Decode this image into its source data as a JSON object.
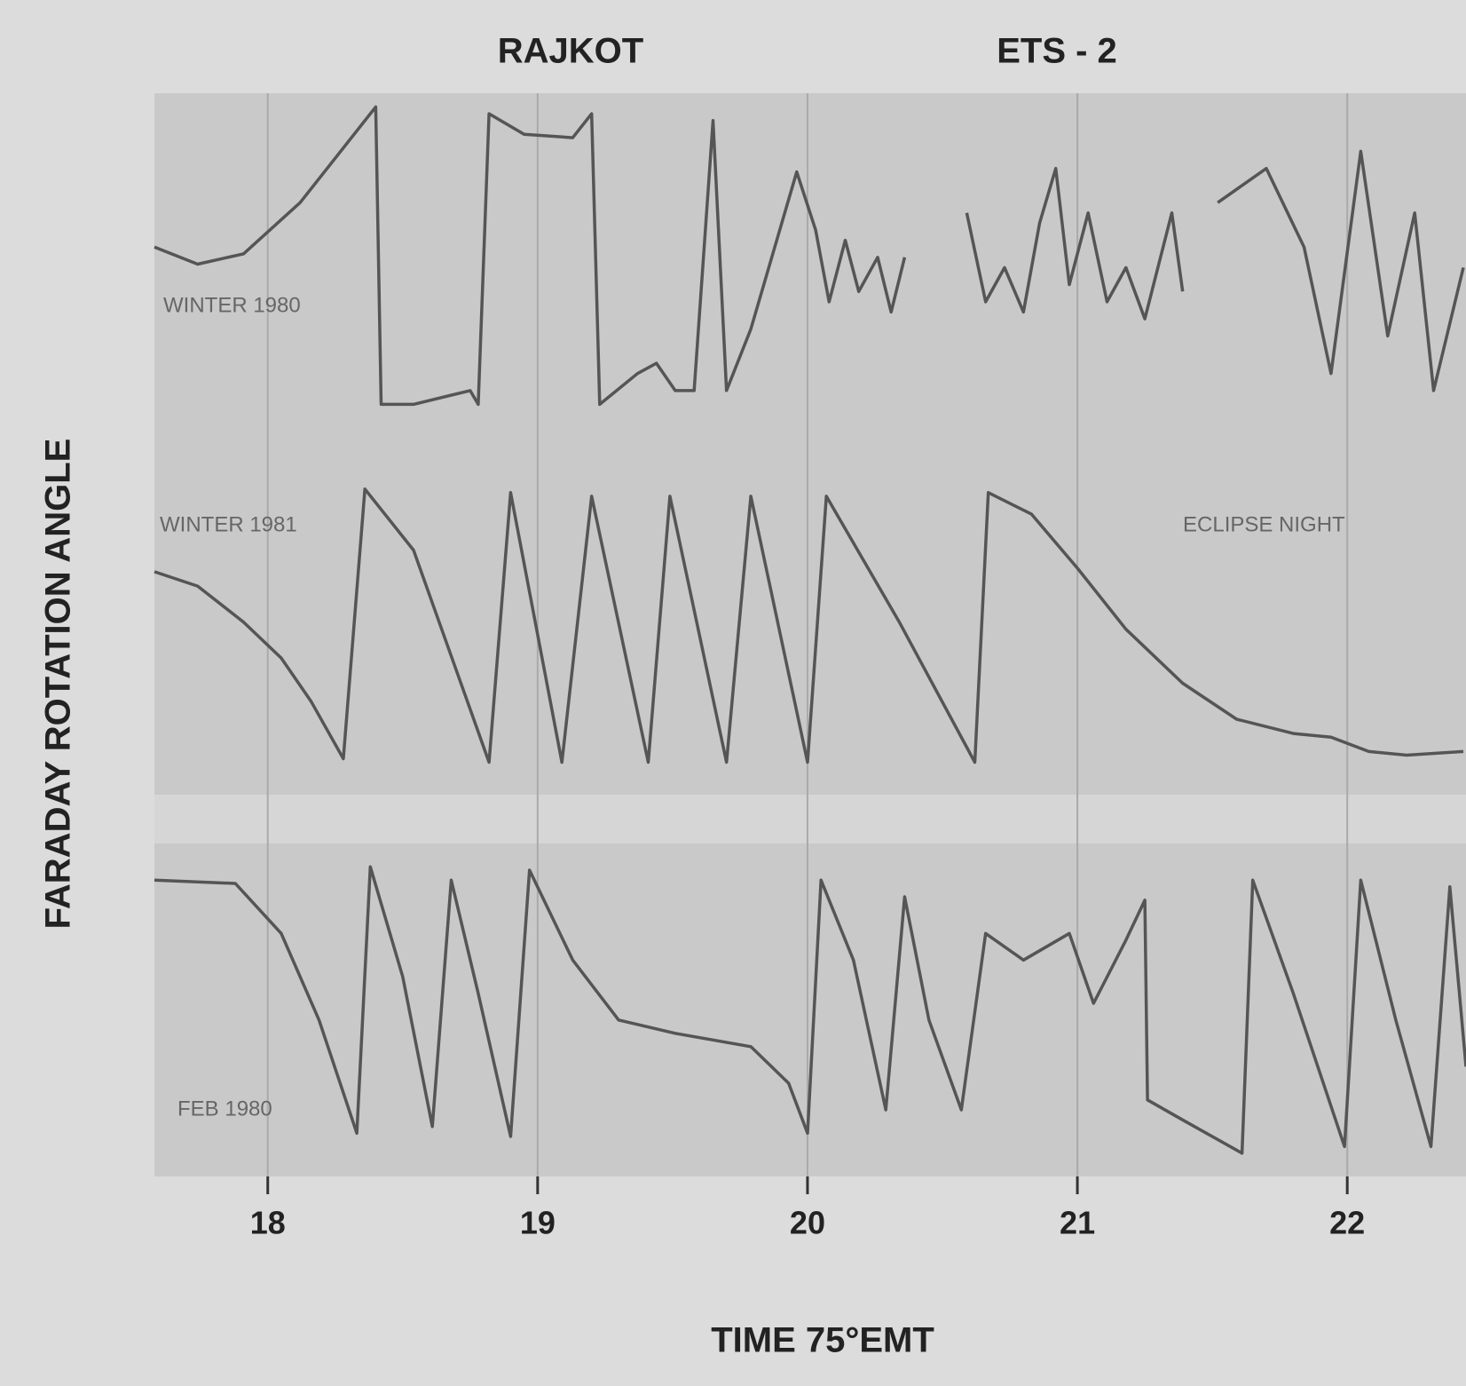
{
  "chart_data": [
    {
      "type": "line",
      "title": "RAJKOT",
      "subtitle": "ETS - 2",
      "ylabel": "FARADAY ROTATION ANGLE",
      "annotations": [
        "WINTER 1980"
      ],
      "color": "#555555",
      "xlim": [
        17.58,
        22.44
      ],
      "ylim": [
        0,
        1
      ],
      "x": [
        17.58,
        17.74,
        17.91,
        18.12,
        18.4,
        18.42,
        18.54,
        18.75,
        18.78,
        18.82,
        18.95,
        19.13,
        19.2,
        19.23,
        19.37,
        19.44,
        19.51,
        19.58,
        19.65,
        19.7,
        19.79,
        19.96,
        20.03,
        20.08,
        20.14,
        20.19,
        20.26,
        20.31,
        20.36,
        20.45,
        20.59,
        20.66,
        20.73,
        20.8,
        20.86,
        20.92,
        20.97,
        21.04,
        21.11,
        21.18,
        21.25,
        21.35,
        21.39,
        21.45,
        21.52,
        21.7,
        21.84,
        21.94,
        22.05,
        22.15,
        22.25,
        22.32,
        22.43
      ],
      "values": [
        0.55,
        0.5,
        0.53,
        0.68,
        0.96,
        0.09,
        0.09,
        0.13,
        0.09,
        0.94,
        0.88,
        0.87,
        0.94,
        0.09,
        0.18,
        0.21,
        0.13,
        0.13,
        0.92,
        0.13,
        0.31,
        0.77,
        0.6,
        0.39,
        0.57,
        0.42,
        0.52,
        0.36,
        0.52,
        null,
        0.65,
        0.39,
        0.49,
        0.36,
        0.62,
        0.78,
        0.44,
        0.65,
        0.39,
        0.49,
        0.34,
        0.65,
        0.42,
        null,
        0.68,
        0.78,
        0.55,
        0.18,
        0.83,
        0.29,
        0.65,
        0.13,
        0.49
      ]
    },
    {
      "type": "line",
      "annotations": [
        "WINTER 1981",
        "ECLIPSE NIGHT"
      ],
      "color": "#555555",
      "xlim": [
        17.58,
        22.44
      ],
      "ylim": [
        0,
        1
      ],
      "x": [
        17.58,
        17.74,
        17.91,
        18.05,
        18.16,
        18.28,
        18.36,
        18.54,
        18.82,
        18.9,
        19.09,
        19.2,
        19.41,
        19.49,
        19.7,
        19.79,
        20.0,
        20.07,
        20.34,
        20.62,
        20.67,
        20.83,
        21.0,
        21.18,
        21.39,
        21.59,
        21.8,
        21.94,
        22.08,
        22.22,
        22.43
      ],
      "values": [
        0.62,
        0.58,
        0.48,
        0.38,
        0.26,
        0.1,
        0.85,
        0.68,
        0.09,
        0.84,
        0.09,
        0.83,
        0.09,
        0.83,
        0.09,
        0.83,
        0.09,
        0.83,
        0.48,
        0.09,
        0.84,
        0.78,
        0.63,
        0.46,
        0.31,
        0.21,
        0.17,
        0.16,
        0.12,
        0.11,
        0.12
      ]
    },
    {
      "type": "line",
      "xlabel": "TIME 75°EMT",
      "annotations": [
        "FEB 1980"
      ],
      "color": "#555555",
      "xlim": [
        17.58,
        22.44
      ],
      "ylim": [
        0,
        1
      ],
      "xticks": [
        18,
        19,
        20,
        21,
        22
      ],
      "x": [
        17.58,
        17.88,
        18.05,
        18.19,
        18.33,
        18.38,
        18.5,
        18.61,
        18.68,
        18.78,
        18.9,
        18.97,
        19.13,
        19.3,
        19.51,
        19.79,
        19.93,
        20.0,
        20.05,
        20.17,
        20.29,
        20.36,
        20.45,
        20.57,
        20.66,
        20.8,
        20.97,
        21.06,
        21.18,
        21.25,
        21.26,
        21.39,
        21.61,
        21.65,
        21.8,
        21.99,
        22.05,
        22.18,
        22.31,
        22.38,
        22.44
      ],
      "values": [
        0.89,
        0.88,
        0.73,
        0.47,
        0.13,
        0.93,
        0.6,
        0.15,
        0.89,
        0.55,
        0.12,
        0.92,
        0.65,
        0.47,
        0.43,
        0.39,
        0.28,
        0.13,
        0.89,
        0.65,
        0.2,
        0.84,
        0.47,
        0.2,
        0.73,
        0.65,
        0.73,
        0.52,
        0.71,
        0.83,
        0.23,
        0.17,
        0.07,
        0.89,
        0.55,
        0.09,
        0.89,
        0.47,
        0.09,
        0.87,
        0.33
      ]
    }
  ]
}
